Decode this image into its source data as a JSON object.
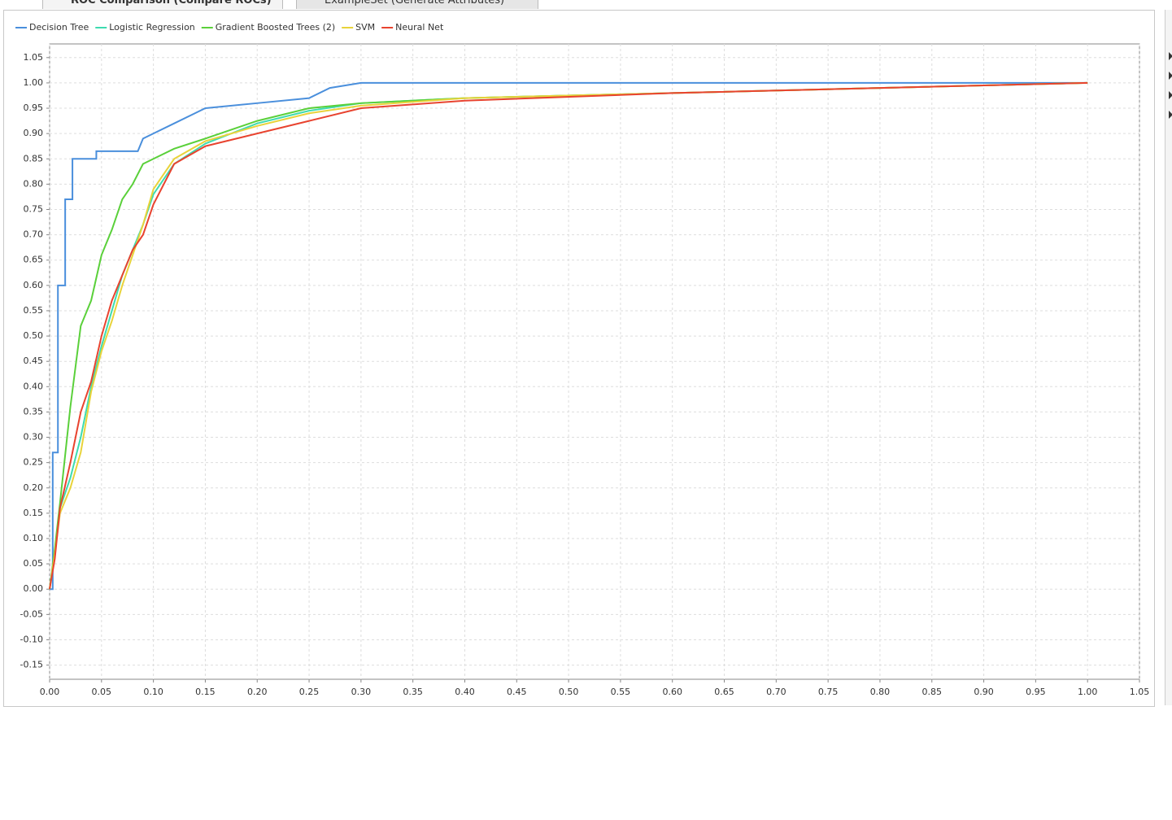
{
  "tabs": [
    "ROC Comparison (Compare ROCs)",
    "ExampleSet (Generate Attributes)"
  ],
  "chart_data": {
    "type": "line",
    "grid": true,
    "legend": "top-left",
    "xlim": [
      0,
      1.05
    ],
    "ylim": [
      -0.178,
      1.077
    ],
    "xticks": [
      {
        "value": 0,
        "label": "0.00"
      },
      {
        "value": 0.05,
        "label": "0.05"
      },
      {
        "value": 0.1,
        "label": "0.10"
      },
      {
        "value": 0.15,
        "label": "0.15"
      },
      {
        "value": 0.2,
        "label": "0.20"
      },
      {
        "value": 0.25,
        "label": "0.25"
      },
      {
        "value": 0.3,
        "label": "0.30"
      },
      {
        "value": 0.35,
        "label": "0.35"
      },
      {
        "value": 0.4,
        "label": "0.40"
      },
      {
        "value": 0.45,
        "label": "0.45"
      },
      {
        "value": 0.5,
        "label": "0.50"
      },
      {
        "value": 0.55,
        "label": "0.55"
      },
      {
        "value": 0.6,
        "label": "0.60"
      },
      {
        "value": 0.65,
        "label": "0.65"
      },
      {
        "value": 0.7,
        "label": "0.70"
      },
      {
        "value": 0.75,
        "label": "0.75"
      },
      {
        "value": 0.8,
        "label": "0.80"
      },
      {
        "value": 0.85,
        "label": "0.85"
      },
      {
        "value": 0.9,
        "label": "0.90"
      },
      {
        "value": 0.95,
        "label": "0.95"
      },
      {
        "value": 1,
        "label": "1.00"
      },
      {
        "value": 1.05,
        "label": "1.05"
      }
    ],
    "yticks": [
      {
        "value": -0.15,
        "label": "-0.15"
      },
      {
        "value": -0.1,
        "label": "-0.10"
      },
      {
        "value": -0.05,
        "label": "-0.05"
      },
      {
        "value": 0,
        "label": "0.00"
      },
      {
        "value": 0.05,
        "label": "0.05"
      },
      {
        "value": 0.1,
        "label": "0.10"
      },
      {
        "value": 0.15,
        "label": "0.15"
      },
      {
        "value": 0.2,
        "label": "0.20"
      },
      {
        "value": 0.25,
        "label": "0.25"
      },
      {
        "value": 0.3,
        "label": "0.30"
      },
      {
        "value": 0.35,
        "label": "0.35"
      },
      {
        "value": 0.4,
        "label": "0.40"
      },
      {
        "value": 0.45,
        "label": "0.45"
      },
      {
        "value": 0.5,
        "label": "0.50"
      },
      {
        "value": 0.55,
        "label": "0.55"
      },
      {
        "value": 0.6,
        "label": "0.60"
      },
      {
        "value": 0.65,
        "label": "0.65"
      },
      {
        "value": 0.7,
        "label": "0.70"
      },
      {
        "value": 0.75,
        "label": "0.75"
      },
      {
        "value": 0.8,
        "label": "0.80"
      },
      {
        "value": 0.85,
        "label": "0.85"
      },
      {
        "value": 0.9,
        "label": "0.90"
      },
      {
        "value": 0.95,
        "label": "0.95"
      },
      {
        "value": 1,
        "label": "1.00"
      },
      {
        "value": 1.05,
        "label": "1.05"
      }
    ],
    "series": [
      {
        "name": "Decision Tree",
        "color": "#4a8fdc",
        "x": [
          0,
          0.003,
          0.003,
          0.008,
          0.008,
          0.015,
          0.015,
          0.022,
          0.022,
          0.045,
          0.045,
          0.085,
          0.09,
          0.1,
          0.12,
          0.14,
          0.15,
          0.2,
          0.25,
          0.27,
          0.3,
          1.0
        ],
        "values": [
          0,
          0,
          0.27,
          0.27,
          0.6,
          0.6,
          0.77,
          0.77,
          0.85,
          0.85,
          0.865,
          0.865,
          0.89,
          0.9,
          0.92,
          0.94,
          0.95,
          0.96,
          0.97,
          0.99,
          1.0,
          1.0
        ]
      },
      {
        "name": "Logistic Regression",
        "color": "#3ddbb0",
        "x": [
          0,
          0.005,
          0.01,
          0.02,
          0.03,
          0.04,
          0.05,
          0.06,
          0.07,
          0.08,
          0.09,
          0.1,
          0.12,
          0.15,
          0.2,
          0.25,
          0.3,
          0.4,
          0.6,
          0.8,
          1.0
        ],
        "values": [
          0,
          0.07,
          0.16,
          0.22,
          0.3,
          0.4,
          0.48,
          0.55,
          0.62,
          0.67,
          0.72,
          0.78,
          0.84,
          0.88,
          0.92,
          0.945,
          0.96,
          0.97,
          0.98,
          0.99,
          1.0
        ]
      },
      {
        "name": "Gradient Boosted Trees (2)",
        "color": "#5ad03a",
        "x": [
          0,
          0.005,
          0.01,
          0.02,
          0.03,
          0.04,
          0.05,
          0.06,
          0.07,
          0.08,
          0.09,
          0.1,
          0.12,
          0.15,
          0.2,
          0.25,
          0.3,
          0.4,
          0.6,
          0.8,
          1.0
        ],
        "values": [
          0,
          0.08,
          0.17,
          0.36,
          0.52,
          0.57,
          0.66,
          0.71,
          0.77,
          0.8,
          0.84,
          0.85,
          0.87,
          0.89,
          0.925,
          0.95,
          0.96,
          0.97,
          0.98,
          0.99,
          1.0
        ]
      },
      {
        "name": "SVM",
        "color": "#e8d33a",
        "x": [
          0,
          0.005,
          0.01,
          0.02,
          0.03,
          0.04,
          0.05,
          0.06,
          0.07,
          0.08,
          0.09,
          0.1,
          0.12,
          0.15,
          0.2,
          0.25,
          0.3,
          0.4,
          0.6,
          0.8,
          1.0
        ],
        "values": [
          0,
          0.07,
          0.15,
          0.2,
          0.27,
          0.39,
          0.47,
          0.53,
          0.6,
          0.66,
          0.72,
          0.79,
          0.85,
          0.885,
          0.915,
          0.94,
          0.955,
          0.97,
          0.98,
          0.99,
          1.0
        ]
      },
      {
        "name": "Neural Net",
        "color": "#e8432f",
        "x": [
          0,
          0.005,
          0.01,
          0.02,
          0.03,
          0.04,
          0.05,
          0.06,
          0.07,
          0.08,
          0.09,
          0.1,
          0.12,
          0.15,
          0.2,
          0.25,
          0.3,
          0.4,
          0.6,
          0.8,
          1.0
        ],
        "values": [
          0,
          0.06,
          0.16,
          0.25,
          0.35,
          0.41,
          0.5,
          0.57,
          0.62,
          0.67,
          0.7,
          0.76,
          0.84,
          0.875,
          0.9,
          0.925,
          0.95,
          0.965,
          0.98,
          0.99,
          1.0
        ]
      }
    ]
  }
}
